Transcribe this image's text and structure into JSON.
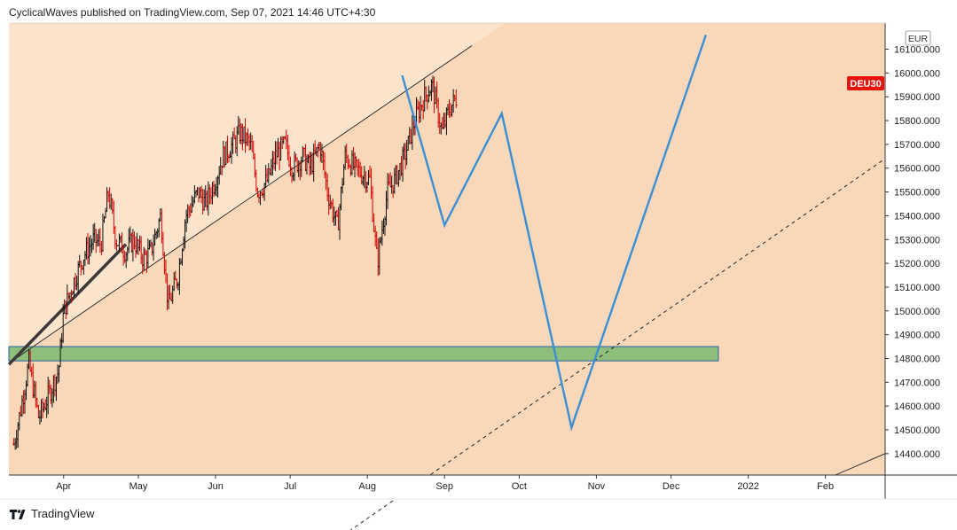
{
  "header": {
    "publisher_line": "CyclicalWaves published on TradingView.com, Sep 07, 2021 14:46 UTC+4:30"
  },
  "footer": {
    "brand": "TradingView"
  },
  "symbol_label": "DEU30",
  "currency_label": "EUR",
  "colors": {
    "background_light": "#fbe3cc",
    "background_channel": "#f8d8b8",
    "up_candle": "#111111",
    "down_candle": "#d40000",
    "projection": "#3b8fd6",
    "support_zone": "#8dbf7a",
    "support_border": "#2a5fa8",
    "symbol_badge": "#e8120c"
  },
  "chart_data": {
    "type": "candlestick",
    "symbol": "DEU30",
    "currency": "EUR",
    "x_ticks": [
      "Apr",
      "May",
      "Jun",
      "Jul",
      "Aug",
      "Sep",
      "Oct",
      "Nov",
      "Dec",
      "2022",
      "Feb"
    ],
    "y_ticks": [
      16100,
      16000,
      15900,
      15800,
      15700,
      15600,
      15500,
      15400,
      15300,
      15200,
      15100,
      15000,
      14900,
      14800,
      14700,
      14600,
      14500,
      14400
    ],
    "y_tick_labels": [
      "16100.000",
      "16000.000",
      "15900.000",
      "15800.000",
      "15700.000",
      "15600.000",
      "15500.000",
      "15400.000",
      "15300.000",
      "15200.000",
      "15100.000",
      "15000.000",
      "14900.000",
      "14800.000",
      "14700.000",
      "14600.000",
      "14500.000",
      "14400.000"
    ],
    "ylim": [
      14310,
      16210
    ],
    "xlim": [
      "2021-03-10",
      "2022-02-25"
    ],
    "price_path": [
      [
        "2021-03-12",
        14440
      ],
      [
        "2021-03-15",
        14600
      ],
      [
        "2021-03-18",
        14780
      ],
      [
        "2021-03-22",
        14550
      ],
      [
        "2021-03-25",
        14620
      ],
      [
        "2021-03-30",
        14750
      ],
      [
        "2021-04-01",
        15000
      ],
      [
        "2021-04-06",
        15150
      ],
      [
        "2021-04-09",
        15230
      ],
      [
        "2021-04-13",
        15300
      ],
      [
        "2021-04-16",
        15280
      ],
      [
        "2021-04-19",
        15500
      ],
      [
        "2021-04-22",
        15300
      ],
      [
        "2021-04-26",
        15250
      ],
      [
        "2021-04-29",
        15300
      ],
      [
        "2021-05-03",
        15220
      ],
      [
        "2021-05-06",
        15250
      ],
      [
        "2021-05-10",
        15400
      ],
      [
        "2021-05-13",
        15020
      ],
      [
        "2021-05-17",
        15150
      ],
      [
        "2021-05-20",
        15400
      ],
      [
        "2021-05-25",
        15500
      ],
      [
        "2021-05-28",
        15450
      ],
      [
        "2021-06-01",
        15550
      ],
      [
        "2021-06-04",
        15650
      ],
      [
        "2021-06-08",
        15700
      ],
      [
        "2021-06-11",
        15750
      ],
      [
        "2021-06-15",
        15700
      ],
      [
        "2021-06-18",
        15500
      ],
      [
        "2021-06-22",
        15550
      ],
      [
        "2021-06-25",
        15650
      ],
      [
        "2021-06-29",
        15700
      ],
      [
        "2021-07-02",
        15600
      ],
      [
        "2021-07-06",
        15650
      ],
      [
        "2021-07-09",
        15600
      ],
      [
        "2021-07-13",
        15700
      ],
      [
        "2021-07-16",
        15500
      ],
      [
        "2021-07-20",
        15350
      ],
      [
        "2021-07-23",
        15650
      ],
      [
        "2021-07-27",
        15600
      ],
      [
        "2021-08-02",
        15550
      ],
      [
        "2021-08-05",
        15200
      ],
      [
        "2021-08-09",
        15500
      ],
      [
        "2021-08-12",
        15550
      ],
      [
        "2021-08-16",
        15650
      ],
      [
        "2021-08-20",
        15800
      ],
      [
        "2021-08-24",
        15900
      ],
      [
        "2021-08-27",
        15950
      ],
      [
        "2021-08-31",
        15750
      ],
      [
        "2021-09-03",
        15850
      ],
      [
        "2021-09-06",
        15900
      ]
    ],
    "projection_path": [
      [
        "2021-08-15",
        15990
      ],
      [
        "2021-09-01",
        15360
      ],
      [
        "2021-09-24",
        15830
      ],
      [
        "2021-10-22",
        14510
      ],
      [
        "2021-12-15",
        16160
      ]
    ],
    "trendlines": [
      {
        "name": "channel-upper",
        "from": [
          "2021-03-10",
          14780
        ],
        "to": [
          "2021-09-12",
          16115
        ],
        "style": "solid"
      },
      {
        "name": "channel-lower",
        "from": [
          "2021-07-20",
          14040
        ],
        "to": [
          "2022-02-25",
          15640
        ],
        "style": "dashed"
      },
      {
        "name": "bold-segment",
        "from": [
          "2021-03-10",
          14775
        ],
        "to": [
          "2021-04-26",
          15280
        ],
        "style": "bold"
      },
      {
        "name": "corner-line",
        "from": [
          "2022-02-05",
          14310
        ],
        "to": [
          "2022-02-25",
          14400
        ],
        "style": "solid"
      }
    ],
    "support_zone": {
      "from": "2021-03-10",
      "to": "2021-12-20",
      "y_low": 14790,
      "y_high": 14850
    },
    "grid": false,
    "legend": "none"
  }
}
